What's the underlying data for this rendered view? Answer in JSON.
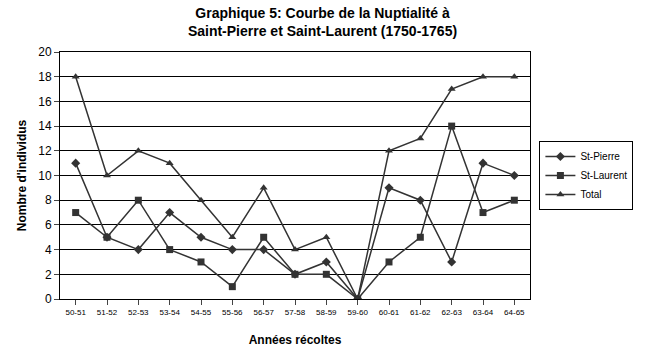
{
  "chart_data": {
    "type": "line",
    "title": "Graphique 5: Courbe de la Nuptialité à\nSaint-Pierre et Saint-Laurent (1750-1765)",
    "x_label": "Années récoltes",
    "y_label": "Nombre d'individus",
    "categories": [
      "50-51",
      "51-52",
      "52-53",
      "53-54",
      "54-55",
      "55-56",
      "56-57",
      "57-58",
      "58-59",
      "59-60",
      "60-61",
      "61-62",
      "62-63",
      "63-64",
      "64-65"
    ],
    "series": [
      {
        "name": "St-Pierre",
        "color": "#333333",
        "marker": "diamond",
        "line_style": "solid",
        "values": [
          11,
          5,
          4,
          7,
          5,
          4,
          4,
          2,
          3,
          0,
          9,
          8,
          3,
          11,
          10
        ]
      },
      {
        "name": "St-Laurent",
        "color": "#333333",
        "marker": "square",
        "line_style": "solid",
        "values": [
          7,
          5,
          8,
          4,
          3,
          1,
          5,
          2,
          2,
          0,
          3,
          5,
          14,
          7,
          8
        ]
      },
      {
        "name": "Total",
        "color": "#333333",
        "marker": "triangle-up",
        "line_style": "solid",
        "values": [
          18,
          10,
          12,
          11,
          8,
          5,
          9,
          4,
          5,
          0,
          12,
          13,
          17,
          18,
          18
        ]
      }
    ],
    "ylim": [
      0,
      20
    ],
    "yticks": [
      0,
      2,
      4,
      6,
      8,
      10,
      12,
      14,
      16,
      18,
      20
    ],
    "grid": true,
    "legend": "right"
  }
}
